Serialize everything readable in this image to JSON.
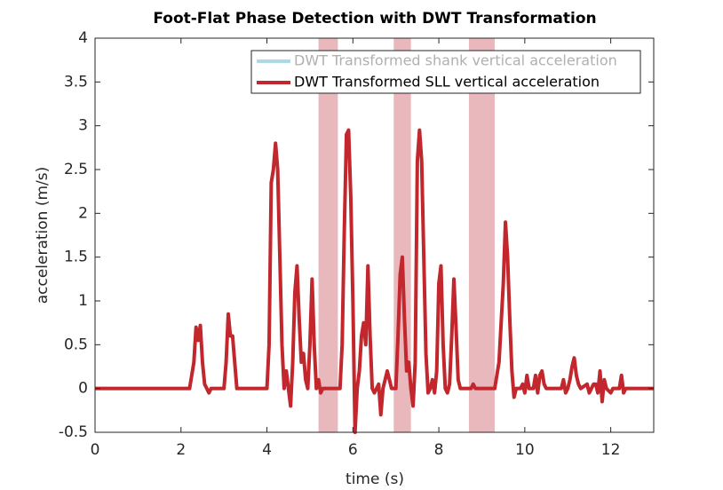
{
  "chart_data": {
    "type": "line",
    "title": "Foot-Flat Phase Detection with DWT Transformation",
    "xlabel": "time (s)",
    "ylabel": "acceleration (m/s)",
    "xlim": [
      0,
      13
    ],
    "xticks": [
      0,
      2,
      4,
      6,
      8,
      10,
      12
    ],
    "ylim": [
      -0.5,
      4
    ],
    "yticks": [
      -0.5,
      0,
      0.5,
      1,
      1.5,
      2,
      2.5,
      3,
      3.5,
      4
    ],
    "legend": "northeast",
    "regions": [
      [
        5.2,
        5.65
      ],
      [
        6.95,
        7.35
      ],
      [
        8.7,
        9.3
      ]
    ],
    "region_color": "#e9b8bc",
    "x": [
      0,
      2.2,
      2.3,
      2.35,
      2.4,
      2.45,
      2.5,
      2.55,
      2.6,
      2.65,
      2.7,
      3.0,
      3.05,
      3.1,
      3.15,
      3.2,
      3.25,
      3.3,
      4.0,
      4.05,
      4.1,
      4.15,
      4.2,
      4.25,
      4.3,
      4.35,
      4.4,
      4.45,
      4.5,
      4.55,
      4.6,
      4.65,
      4.7,
      4.75,
      4.8,
      4.85,
      4.9,
      4.95,
      5.0,
      5.05,
      5.1,
      5.15,
      5.2,
      5.25,
      5.3,
      5.7,
      5.75,
      5.8,
      5.85,
      5.9,
      5.95,
      6.0,
      6.05,
      6.1,
      6.15,
      6.2,
      6.25,
      6.3,
      6.35,
      6.4,
      6.45,
      6.5,
      6.55,
      6.6,
      6.65,
      6.7,
      6.8,
      6.85,
      6.9,
      7.0,
      7.05,
      7.1,
      7.15,
      7.2,
      7.25,
      7.3,
      7.35,
      7.4,
      7.45,
      7.5,
      7.55,
      7.6,
      7.65,
      7.7,
      7.75,
      7.8,
      7.85,
      7.9,
      7.95,
      8.0,
      8.05,
      8.1,
      8.15,
      8.2,
      8.25,
      8.3,
      8.35,
      8.4,
      8.45,
      8.5,
      8.75,
      8.8,
      8.85,
      9.3,
      9.4,
      9.5,
      9.55,
      9.6,
      9.65,
      9.7,
      9.75,
      9.8,
      9.9,
      9.95,
      10.0,
      10.05,
      10.1,
      10.2,
      10.25,
      10.3,
      10.35,
      10.4,
      10.45,
      10.5,
      10.85,
      10.9,
      10.95,
      11.0,
      11.05,
      11.1,
      11.15,
      11.2,
      11.25,
      11.3,
      11.45,
      11.5,
      11.55,
      11.6,
      11.65,
      11.7,
      11.75,
      11.8,
      11.85,
      11.9,
      12.0,
      12.05,
      12.2,
      12.25,
      12.3,
      12.35,
      13
    ],
    "series": [
      {
        "name": "DWT Transformed shank vertical acceleration",
        "color": "#add8e6",
        "values": [
          null,
          null,
          null,
          null,
          null,
          null,
          null,
          null,
          null,
          null,
          null,
          null,
          null,
          null,
          null,
          null,
          null,
          null,
          null,
          null,
          null,
          null,
          null,
          null,
          null,
          null,
          null,
          null,
          null,
          null,
          null,
          null,
          null,
          null,
          null,
          null,
          null,
          null,
          null,
          null,
          null,
          null,
          null,
          null,
          null,
          null,
          null,
          null,
          null,
          null,
          null,
          null,
          null,
          null,
          null,
          null,
          null,
          null,
          null,
          null,
          null,
          null,
          null,
          null,
          null,
          null,
          null,
          null,
          null,
          null,
          null,
          null,
          null,
          null,
          null,
          null,
          null,
          null,
          null,
          null,
          null,
          null,
          null,
          null,
          null,
          null,
          null,
          null,
          null,
          null,
          null,
          null,
          null,
          null,
          null,
          null,
          null,
          null,
          null,
          null,
          null,
          null,
          null,
          null,
          null,
          null,
          null,
          null,
          null,
          null,
          null,
          null,
          null,
          null,
          null,
          null,
          null,
          null,
          null,
          null,
          null,
          null,
          null,
          null,
          null,
          null,
          null,
          null,
          null,
          null,
          null,
          null,
          null,
          null,
          null,
          null,
          null,
          null,
          null,
          null,
          null,
          null,
          null,
          null,
          null,
          null,
          null,
          null,
          null,
          null,
          null
        ]
      },
      {
        "name": "DWT Transformed SLL vertical acceleration",
        "color": "#c1272d",
        "values": [
          0,
          0,
          0.3,
          0.7,
          0.55,
          0.72,
          0.3,
          0.05,
          0,
          -0.05,
          0,
          0,
          0.3,
          0.85,
          0.6,
          0.6,
          0.3,
          0,
          0,
          0.5,
          2.35,
          2.5,
          2.8,
          2.5,
          1.5,
          0.5,
          0,
          0.2,
          0,
          -0.2,
          0.3,
          1.1,
          1.4,
          0.8,
          0.3,
          0.4,
          0.1,
          0,
          0.5,
          1.25,
          0.5,
          0,
          0.1,
          -0.05,
          0,
          0,
          0.5,
          1.8,
          2.9,
          2.95,
          2.2,
          1.0,
          -0.5,
          0,
          0.2,
          0.6,
          0.75,
          0.5,
          1.4,
          0.6,
          0,
          -0.05,
          0,
          0.05,
          -0.3,
          0,
          0.2,
          0.1,
          0,
          0,
          0.6,
          1.3,
          1.5,
          0.8,
          0.2,
          0.3,
          0,
          -0.2,
          0.3,
          2.6,
          2.95,
          2.6,
          1.5,
          0.4,
          -0.05,
          0,
          0.1,
          -0.05,
          0.2,
          1.2,
          1.4,
          0.5,
          0,
          -0.05,
          0.05,
          0.6,
          1.25,
          0.7,
          0.1,
          0,
          0,
          0.05,
          0,
          0,
          0.3,
          1.2,
          1.9,
          1.5,
          0.8,
          0.2,
          -0.1,
          0,
          0,
          0.05,
          -0.05,
          0.15,
          0,
          0,
          0.15,
          -0.05,
          0.15,
          0.2,
          0.05,
          0,
          0,
          0.1,
          -0.05,
          0,
          0.1,
          0.25,
          0.35,
          0.15,
          0.05,
          0,
          0.05,
          -0.05,
          0,
          0.05,
          0.05,
          -0.05,
          0.2,
          -0.15,
          0.1,
          0,
          -0.05,
          0,
          0,
          0.15,
          -0.05,
          0,
          0
        ]
      }
    ]
  }
}
